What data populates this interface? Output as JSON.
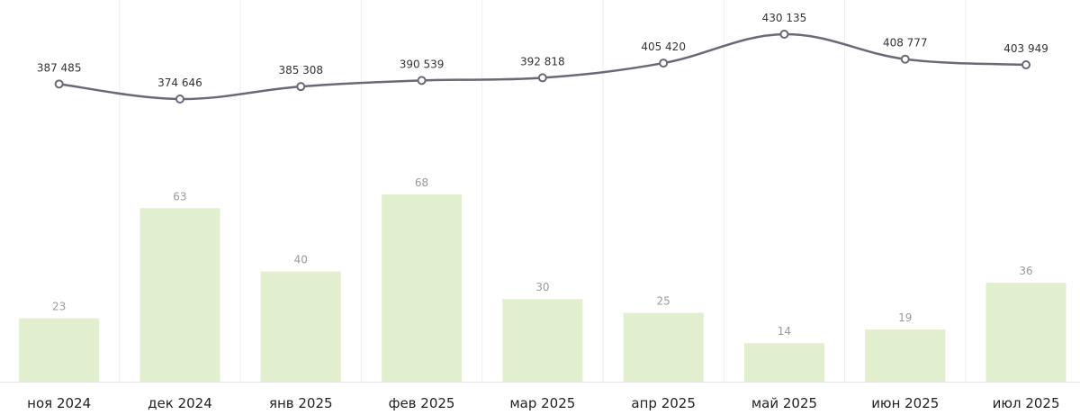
{
  "chart_data": {
    "type": "bar",
    "categories": [
      "ноя 2024",
      "дек 2024",
      "янв 2025",
      "фев 2025",
      "мар 2025",
      "апр 2025",
      "май 2025",
      "июн 2025",
      "июл 2025"
    ],
    "series": [
      {
        "type": "bar",
        "values": [
          23,
          63,
          40,
          68,
          30,
          25,
          14,
          19,
          36
        ],
        "labels": [
          "23",
          "63",
          "40",
          "68",
          "30",
          "25",
          "14",
          "19",
          "36"
        ],
        "color": "#e2efcf"
      },
      {
        "type": "line",
        "values": [
          387485,
          374646,
          385308,
          390539,
          392818,
          405420,
          430135,
          408777,
          403949
        ],
        "labels": [
          "387 485",
          "374 646",
          "385 308",
          "390 539",
          "392 818",
          "405 420",
          "430 135",
          "408 777",
          "403 949"
        ],
        "color": "#6b6977"
      }
    ],
    "title": "",
    "xlabel": "",
    "ylabel": "",
    "grid": "vertical",
    "legend": "none"
  }
}
